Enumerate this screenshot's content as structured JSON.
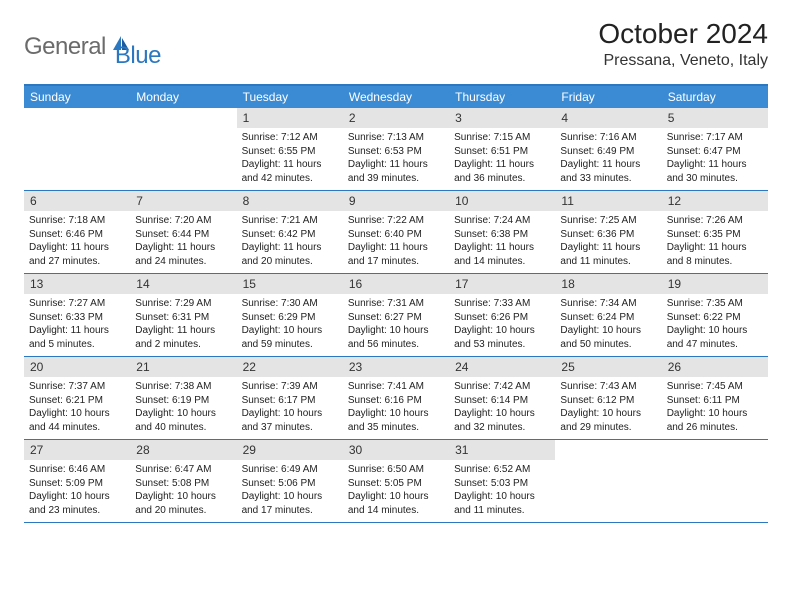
{
  "logo": {
    "general": "General",
    "blue": "Blue"
  },
  "title": "October 2024",
  "location": "Pressana, Veneto, Italy",
  "colors": {
    "header_bg": "#3b8bd4",
    "border": "#2b77c0",
    "daynum_bg": "#e4e4e4",
    "logo_gray": "#6b6b6b",
    "logo_blue": "#2b77c0"
  },
  "day_names": [
    "Sunday",
    "Monday",
    "Tuesday",
    "Wednesday",
    "Thursday",
    "Friday",
    "Saturday"
  ],
  "weeks": [
    [
      null,
      null,
      {
        "n": "1",
        "sr": "Sunrise: 7:12 AM",
        "ss": "Sunset: 6:55 PM",
        "dl1": "Daylight: 11 hours",
        "dl2": "and 42 minutes."
      },
      {
        "n": "2",
        "sr": "Sunrise: 7:13 AM",
        "ss": "Sunset: 6:53 PM",
        "dl1": "Daylight: 11 hours",
        "dl2": "and 39 minutes."
      },
      {
        "n": "3",
        "sr": "Sunrise: 7:15 AM",
        "ss": "Sunset: 6:51 PM",
        "dl1": "Daylight: 11 hours",
        "dl2": "and 36 minutes."
      },
      {
        "n": "4",
        "sr": "Sunrise: 7:16 AM",
        "ss": "Sunset: 6:49 PM",
        "dl1": "Daylight: 11 hours",
        "dl2": "and 33 minutes."
      },
      {
        "n": "5",
        "sr": "Sunrise: 7:17 AM",
        "ss": "Sunset: 6:47 PM",
        "dl1": "Daylight: 11 hours",
        "dl2": "and 30 minutes."
      }
    ],
    [
      {
        "n": "6",
        "sr": "Sunrise: 7:18 AM",
        "ss": "Sunset: 6:46 PM",
        "dl1": "Daylight: 11 hours",
        "dl2": "and 27 minutes."
      },
      {
        "n": "7",
        "sr": "Sunrise: 7:20 AM",
        "ss": "Sunset: 6:44 PM",
        "dl1": "Daylight: 11 hours",
        "dl2": "and 24 minutes."
      },
      {
        "n": "8",
        "sr": "Sunrise: 7:21 AM",
        "ss": "Sunset: 6:42 PM",
        "dl1": "Daylight: 11 hours",
        "dl2": "and 20 minutes."
      },
      {
        "n": "9",
        "sr": "Sunrise: 7:22 AM",
        "ss": "Sunset: 6:40 PM",
        "dl1": "Daylight: 11 hours",
        "dl2": "and 17 minutes."
      },
      {
        "n": "10",
        "sr": "Sunrise: 7:24 AM",
        "ss": "Sunset: 6:38 PM",
        "dl1": "Daylight: 11 hours",
        "dl2": "and 14 minutes."
      },
      {
        "n": "11",
        "sr": "Sunrise: 7:25 AM",
        "ss": "Sunset: 6:36 PM",
        "dl1": "Daylight: 11 hours",
        "dl2": "and 11 minutes."
      },
      {
        "n": "12",
        "sr": "Sunrise: 7:26 AM",
        "ss": "Sunset: 6:35 PM",
        "dl1": "Daylight: 11 hours",
        "dl2": "and 8 minutes."
      }
    ],
    [
      {
        "n": "13",
        "sr": "Sunrise: 7:27 AM",
        "ss": "Sunset: 6:33 PM",
        "dl1": "Daylight: 11 hours",
        "dl2": "and 5 minutes."
      },
      {
        "n": "14",
        "sr": "Sunrise: 7:29 AM",
        "ss": "Sunset: 6:31 PM",
        "dl1": "Daylight: 11 hours",
        "dl2": "and 2 minutes."
      },
      {
        "n": "15",
        "sr": "Sunrise: 7:30 AM",
        "ss": "Sunset: 6:29 PM",
        "dl1": "Daylight: 10 hours",
        "dl2": "and 59 minutes."
      },
      {
        "n": "16",
        "sr": "Sunrise: 7:31 AM",
        "ss": "Sunset: 6:27 PM",
        "dl1": "Daylight: 10 hours",
        "dl2": "and 56 minutes."
      },
      {
        "n": "17",
        "sr": "Sunrise: 7:33 AM",
        "ss": "Sunset: 6:26 PM",
        "dl1": "Daylight: 10 hours",
        "dl2": "and 53 minutes."
      },
      {
        "n": "18",
        "sr": "Sunrise: 7:34 AM",
        "ss": "Sunset: 6:24 PM",
        "dl1": "Daylight: 10 hours",
        "dl2": "and 50 minutes."
      },
      {
        "n": "19",
        "sr": "Sunrise: 7:35 AM",
        "ss": "Sunset: 6:22 PM",
        "dl1": "Daylight: 10 hours",
        "dl2": "and 47 minutes."
      }
    ],
    [
      {
        "n": "20",
        "sr": "Sunrise: 7:37 AM",
        "ss": "Sunset: 6:21 PM",
        "dl1": "Daylight: 10 hours",
        "dl2": "and 44 minutes."
      },
      {
        "n": "21",
        "sr": "Sunrise: 7:38 AM",
        "ss": "Sunset: 6:19 PM",
        "dl1": "Daylight: 10 hours",
        "dl2": "and 40 minutes."
      },
      {
        "n": "22",
        "sr": "Sunrise: 7:39 AM",
        "ss": "Sunset: 6:17 PM",
        "dl1": "Daylight: 10 hours",
        "dl2": "and 37 minutes."
      },
      {
        "n": "23",
        "sr": "Sunrise: 7:41 AM",
        "ss": "Sunset: 6:16 PM",
        "dl1": "Daylight: 10 hours",
        "dl2": "and 35 minutes."
      },
      {
        "n": "24",
        "sr": "Sunrise: 7:42 AM",
        "ss": "Sunset: 6:14 PM",
        "dl1": "Daylight: 10 hours",
        "dl2": "and 32 minutes."
      },
      {
        "n": "25",
        "sr": "Sunrise: 7:43 AM",
        "ss": "Sunset: 6:12 PM",
        "dl1": "Daylight: 10 hours",
        "dl2": "and 29 minutes."
      },
      {
        "n": "26",
        "sr": "Sunrise: 7:45 AM",
        "ss": "Sunset: 6:11 PM",
        "dl1": "Daylight: 10 hours",
        "dl2": "and 26 minutes."
      }
    ],
    [
      {
        "n": "27",
        "sr": "Sunrise: 6:46 AM",
        "ss": "Sunset: 5:09 PM",
        "dl1": "Daylight: 10 hours",
        "dl2": "and 23 minutes."
      },
      {
        "n": "28",
        "sr": "Sunrise: 6:47 AM",
        "ss": "Sunset: 5:08 PM",
        "dl1": "Daylight: 10 hours",
        "dl2": "and 20 minutes."
      },
      {
        "n": "29",
        "sr": "Sunrise: 6:49 AM",
        "ss": "Sunset: 5:06 PM",
        "dl1": "Daylight: 10 hours",
        "dl2": "and 17 minutes."
      },
      {
        "n": "30",
        "sr": "Sunrise: 6:50 AM",
        "ss": "Sunset: 5:05 PM",
        "dl1": "Daylight: 10 hours",
        "dl2": "and 14 minutes."
      },
      {
        "n": "31",
        "sr": "Sunrise: 6:52 AM",
        "ss": "Sunset: 5:03 PM",
        "dl1": "Daylight: 10 hours",
        "dl2": "and 11 minutes."
      },
      null,
      null
    ]
  ]
}
